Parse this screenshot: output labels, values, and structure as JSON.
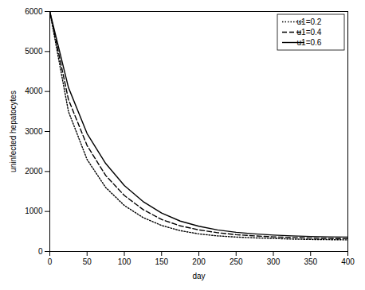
{
  "chart_data": {
    "type": "line",
    "xlabel": "day",
    "ylabel": "uninfected hepatocytes",
    "x": [
      0,
      25,
      50,
      75,
      100,
      125,
      150,
      175,
      200,
      225,
      250,
      275,
      300,
      325,
      350,
      375,
      400
    ],
    "series": [
      {
        "name": "u1=0.2",
        "color": "#000000",
        "line_style": "dotted",
        "values": [
          6000,
          3500,
          2300,
          1600,
          1150,
          850,
          650,
          520,
          440,
          390,
          360,
          340,
          325,
          310,
          300,
          295,
          290
        ]
      },
      {
        "name": "u1=0.4",
        "color": "#000000",
        "line_style": "dashed",
        "values": [
          6000,
          3800,
          2650,
          1900,
          1400,
          1050,
          800,
          640,
          540,
          470,
          420,
          390,
          365,
          350,
          335,
          325,
          320
        ]
      },
      {
        "name": "u1=0.6",
        "color": "#000000",
        "line_style": "solid",
        "values": [
          6000,
          4100,
          2950,
          2200,
          1650,
          1250,
          960,
          760,
          630,
          540,
          480,
          440,
          410,
          390,
          375,
          365,
          360
        ]
      }
    ],
    "xlim": [
      0,
      400
    ],
    "ylim": [
      0,
      6000
    ],
    "xticks": [
      0,
      50,
      100,
      150,
      200,
      250,
      300,
      350,
      400
    ],
    "yticks": [
      0,
      1000,
      2000,
      3000,
      4000,
      5000,
      6000
    ],
    "grid": false,
    "legend": "top-right"
  }
}
